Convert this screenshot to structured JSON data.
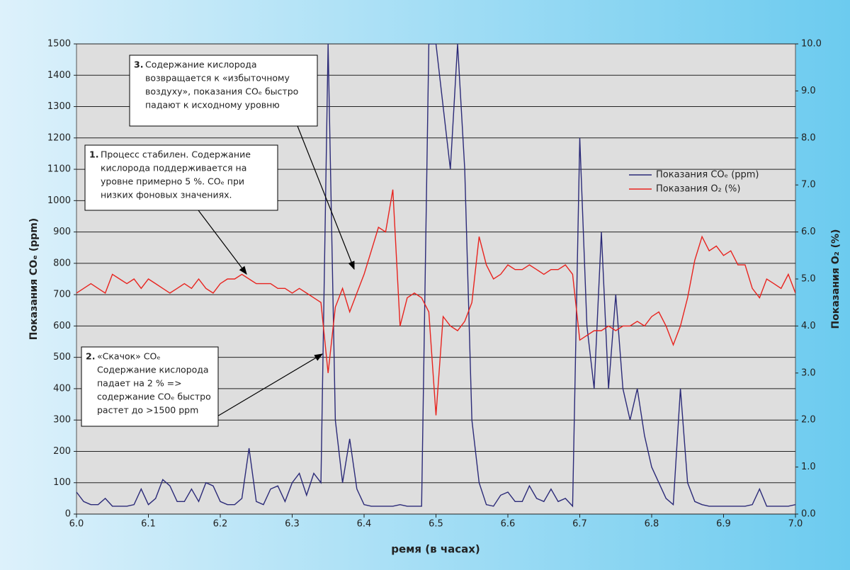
{
  "chart_data": {
    "type": "line",
    "x_label": "ремя (в часах)",
    "y_label": "Показания COₑ (ppm)",
    "y2_label": "Показания O₂ (%)",
    "x": [
      6.0,
      6.01,
      6.02,
      6.03,
      6.04,
      6.05,
      6.06,
      6.07,
      6.08,
      6.09,
      6.1,
      6.11,
      6.12,
      6.13,
      6.14,
      6.15,
      6.16,
      6.17,
      6.18,
      6.19,
      6.2,
      6.21,
      6.22,
      6.23,
      6.24,
      6.25,
      6.26,
      6.27,
      6.28,
      6.29,
      6.3,
      6.31,
      6.32,
      6.33,
      6.34,
      6.35,
      6.36,
      6.37,
      6.38,
      6.39,
      6.4,
      6.41,
      6.42,
      6.43,
      6.44,
      6.45,
      6.46,
      6.47,
      6.48,
      6.49,
      6.5,
      6.51,
      6.52,
      6.53,
      6.54,
      6.55,
      6.56,
      6.57,
      6.58,
      6.59,
      6.6,
      6.61,
      6.62,
      6.63,
      6.64,
      6.65,
      6.66,
      6.67,
      6.68,
      6.69,
      6.7,
      6.71,
      6.72,
      6.73,
      6.74,
      6.75,
      6.76,
      6.77,
      6.78,
      6.79,
      6.8,
      6.81,
      6.82,
      6.83,
      6.84,
      6.85,
      6.86,
      6.87,
      6.88,
      6.89,
      6.9,
      6.91,
      6.92,
      6.93,
      6.94,
      6.95,
      6.96,
      6.97,
      6.98,
      6.99,
      7.0
    ],
    "series": [
      {
        "name": "Показания COₑ (ppm)",
        "color": "#2b2a78",
        "values": [
          70,
          40,
          30,
          30,
          50,
          25,
          25,
          25,
          30,
          80,
          30,
          50,
          110,
          90,
          40,
          40,
          80,
          40,
          100,
          90,
          40,
          30,
          30,
          50,
          210,
          40,
          30,
          80,
          90,
          40,
          100,
          130,
          60,
          130,
          100,
          1500,
          300,
          100,
          240,
          80,
          30,
          25,
          25,
          25,
          25,
          30,
          25,
          25,
          25,
          1500,
          1500,
          1300,
          1100,
          1500,
          1100,
          300,
          100,
          30,
          25,
          60,
          70,
          40,
          40,
          90,
          50,
          40,
          80,
          40,
          50,
          25,
          1200,
          600,
          400,
          900,
          400,
          700,
          400,
          300,
          400,
          250,
          150,
          100,
          50,
          30,
          400,
          100,
          40,
          30,
          25,
          25,
          25,
          25,
          25,
          25,
          30,
          80,
          25,
          25,
          25,
          25,
          30
        ]
      },
      {
        "name": "Показания O₂ (%)",
        "color": "#e8231e",
        "axis": "y2",
        "values": [
          4.7,
          4.8,
          4.9,
          4.8,
          4.7,
          5.1,
          5.0,
          4.9,
          5.0,
          4.8,
          5.0,
          4.9,
          4.8,
          4.7,
          4.8,
          4.9,
          4.8,
          5.0,
          4.8,
          4.7,
          4.9,
          5.0,
          5.0,
          5.1,
          5.0,
          4.9,
          4.9,
          4.9,
          4.8,
          4.8,
          4.7,
          4.8,
          4.7,
          4.6,
          4.5,
          3.0,
          4.4,
          4.8,
          4.3,
          4.7,
          5.1,
          5.6,
          6.1,
          6.0,
          6.9,
          4.0,
          4.6,
          4.7,
          4.6,
          4.3,
          2.1,
          4.2,
          4.0,
          3.9,
          4.1,
          4.5,
          5.9,
          5.3,
          5.0,
          5.1,
          5.3,
          5.2,
          5.2,
          5.3,
          5.2,
          5.1,
          5.2,
          5.2,
          5.3,
          5.1,
          3.7,
          3.8,
          3.9,
          3.9,
          4.0,
          3.9,
          4.0,
          4.0,
          4.1,
          4.0,
          4.2,
          4.3,
          4.0,
          3.6,
          4.0,
          4.6,
          5.4,
          5.9,
          5.6,
          5.7,
          5.5,
          5.6,
          5.3,
          5.3,
          4.8,
          4.6,
          5.0,
          4.9,
          4.8,
          5.1,
          4.7
        ]
      }
    ],
    "xlim": [
      6.0,
      7.0
    ],
    "xticks": [
      {
        "value": 6.0,
        "label": "6.0"
      },
      {
        "value": 6.1,
        "label": "6.1"
      },
      {
        "value": 6.2,
        "label": "6.2"
      },
      {
        "value": 6.3,
        "label": "6.3"
      },
      {
        "value": 6.4,
        "label": "6.4"
      },
      {
        "value": 6.5,
        "label": "6.5"
      },
      {
        "value": 6.6,
        "label": "6.6"
      },
      {
        "value": 6.7,
        "label": "6.7"
      },
      {
        "value": 6.8,
        "label": "6.8"
      },
      {
        "value": 6.9,
        "label": "6.9"
      },
      {
        "value": 7.0,
        "label": "7.0"
      }
    ],
    "ylim": [
      0,
      1500
    ],
    "yticks": [
      0,
      100,
      200,
      300,
      400,
      500,
      600,
      700,
      800,
      900,
      1000,
      1100,
      1200,
      1300,
      1400,
      1500
    ],
    "y2lim": [
      0,
      10
    ],
    "y2ticks": [
      {
        "value": 0,
        "label": "0.0"
      },
      {
        "value": 1,
        "label": "1.0"
      },
      {
        "value": 2,
        "label": "2.0"
      },
      {
        "value": 3,
        "label": "3.0"
      },
      {
        "value": 4,
        "label": "4.0"
      },
      {
        "value": 5,
        "label": "5.0"
      },
      {
        "value": 6,
        "label": "6.0"
      },
      {
        "value": 7,
        "label": "7.0"
      },
      {
        "value": 8,
        "label": "8.0"
      },
      {
        "value": 9,
        "label": "9.0"
      },
      {
        "value": 10,
        "label": "10.0"
      }
    ],
    "grid": true,
    "legend": "right",
    "annotations": [
      {
        "number": "1.",
        "lines": [
          "Процесс стабилен. Содержание",
          "кислорода поддерживается на",
          "уровне примерно 5 %. COₑ при",
          "низких фоновых значениях."
        ]
      },
      {
        "number": "2.",
        "lines": [
          "«Скачок» COₑ",
          "Содержание кислорода",
          "падает на 2 % =>",
          "содержание COₑ быстро",
          "растет до >1500 ppm"
        ]
      },
      {
        "number": "3.",
        "lines": [
          "Содержание кислорода",
          "возвращается к «избыточному",
          "воздуху», показания COₑ быстро",
          "падают к исходному уровню"
        ]
      }
    ]
  }
}
